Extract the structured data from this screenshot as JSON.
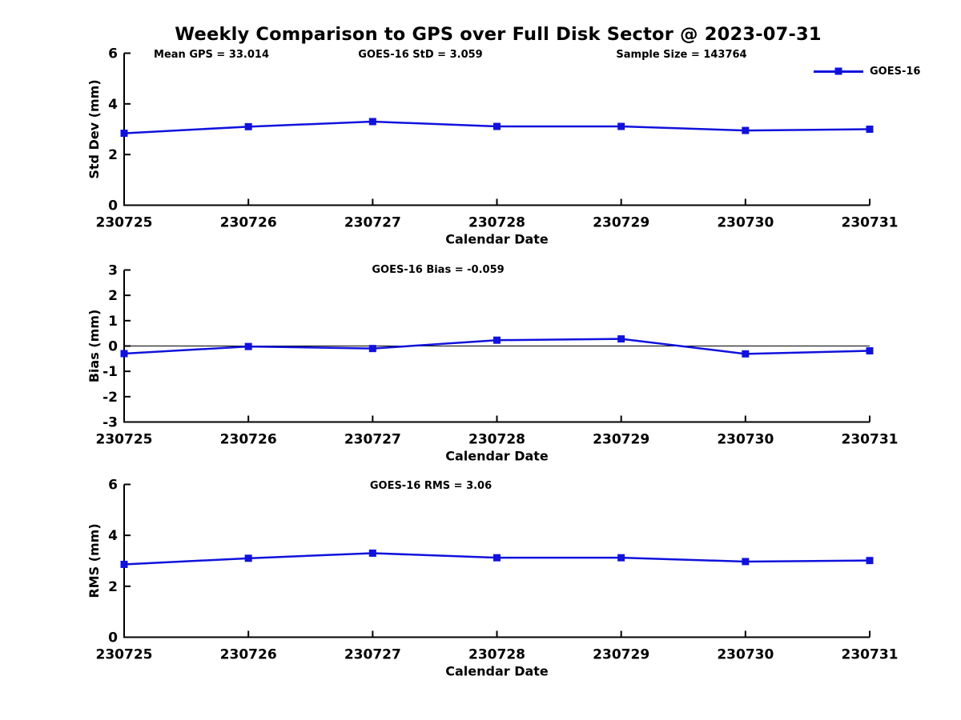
{
  "title": "Weekly Comparison to GPS over Full Disk Sector @ 2023-07-31",
  "legend": {
    "label": "GOES-16"
  },
  "colors": {
    "series": "#1111dd",
    "axis": "#000000",
    "zero_line": "#000000"
  },
  "chart_data": [
    {
      "type": "line",
      "title": "",
      "annotations": [
        "Mean GPS = 33.014",
        "GOES-16 StD = 3.059",
        "Sample Size = 143764"
      ],
      "xlabel": "Calendar Date",
      "ylabel": "Std Dev (mm)",
      "categories": [
        "230725",
        "230726",
        "230727",
        "230728",
        "230729",
        "230730",
        "230731"
      ],
      "series": [
        {
          "name": "GOES-16",
          "values": [
            2.84,
            3.1,
            3.3,
            3.11,
            3.11,
            2.95,
            3.0
          ]
        }
      ],
      "ylim": [
        0,
        6
      ],
      "yticks": [
        0,
        2,
        4,
        6
      ],
      "grid": false,
      "legend_position": "upper right",
      "marker": "square"
    },
    {
      "type": "line",
      "title": "GOES-16 Bias  = -0.059",
      "xlabel": "Calendar Date",
      "ylabel": "Bias (mm)",
      "categories": [
        "230725",
        "230726",
        "230727",
        "230728",
        "230729",
        "230730",
        "230731"
      ],
      "series": [
        {
          "name": "GOES-16",
          "values": [
            -0.3,
            -0.02,
            -0.1,
            0.23,
            0.28,
            -0.31,
            -0.19
          ]
        }
      ],
      "ylim": [
        -3,
        3
      ],
      "yticks": [
        -3,
        -2,
        -1,
        0,
        1,
        2,
        3
      ],
      "zero_line": true,
      "grid": false,
      "marker": "square"
    },
    {
      "type": "line",
      "title": "GOES-16 RMS = 3.06",
      "xlabel": "Calendar Date",
      "ylabel": "RMS (mm)",
      "categories": [
        "230725",
        "230726",
        "230727",
        "230728",
        "230729",
        "230730",
        "230731"
      ],
      "series": [
        {
          "name": "GOES-16",
          "values": [
            2.86,
            3.1,
            3.3,
            3.12,
            3.12,
            2.97,
            3.01
          ]
        }
      ],
      "ylim": [
        0,
        6
      ],
      "yticks": [
        0,
        2,
        4,
        6
      ],
      "grid": false,
      "marker": "square"
    }
  ]
}
